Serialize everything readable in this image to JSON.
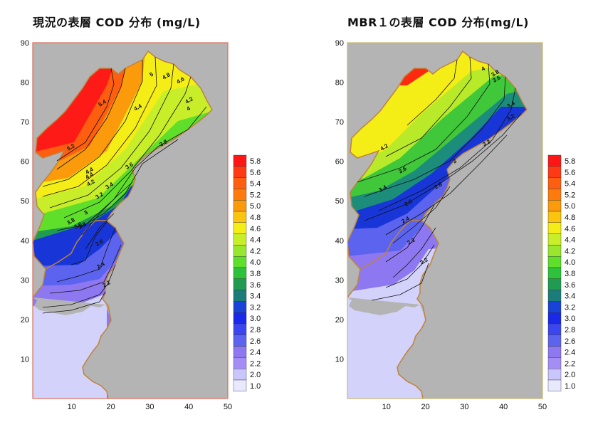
{
  "panels": [
    {
      "title": "現況の表層 COD 分布 (mg/L)",
      "frame_color": "#d9705a",
      "contour_labels": [
        "5",
        "4.8",
        "4.6",
        "4.4",
        "4.4",
        "4.2",
        "4",
        "3.8",
        "3.6",
        "3.4",
        "3.2",
        "3",
        "2.8",
        "2.6",
        "2.4",
        "2.2",
        "5.4",
        "5.2",
        "4.4",
        "4.2",
        "3.8",
        "3.6"
      ],
      "bands": [
        {
          "color": "#fe1a16",
          "min": 5.8
        },
        {
          "color": "#fe5e10",
          "min": 5.2
        },
        {
          "color": "#fb9a0b",
          "min": 4.8
        },
        {
          "color": "#f4ee16",
          "min": 4.6
        },
        {
          "color": "#c8ee2a",
          "min": 4.2
        },
        {
          "color": "#5fde2a",
          "min": 3.8
        },
        {
          "color": "#1f9c52",
          "min": 3.5
        },
        {
          "color": "#1836d8",
          "min": 3.0
        },
        {
          "color": "#5b63ef",
          "min": 2.6
        },
        {
          "color": "#8e78f1",
          "min": 2.2
        },
        {
          "color": "#d3d2fb",
          "min": 1.0
        }
      ]
    },
    {
      "title": "MBR１の表層 COD 分布(mg/L)",
      "frame_color": "#c9b772",
      "contour_labels": [
        "4",
        "3.8",
        "3.6",
        "3.4",
        "3.2",
        "3.2",
        "3",
        "2.8",
        "2.6",
        "2.4",
        "2.2",
        "4.2",
        "3.6",
        "3.4",
        "2.2"
      ],
      "bands": [
        {
          "color": "#fe2a10",
          "min": 5.8
        },
        {
          "color": "#f4ee16",
          "min": 4.4
        },
        {
          "color": "#b8ea2a",
          "min": 4.0
        },
        {
          "color": "#40c83a",
          "min": 3.7
        },
        {
          "color": "#1b8d7a",
          "min": 3.5
        },
        {
          "color": "#1836d8",
          "min": 3.0
        },
        {
          "color": "#5b63ef",
          "min": 2.6
        },
        {
          "color": "#8e78f1",
          "min": 2.2
        },
        {
          "color": "#d3d2fb",
          "min": 1.0
        }
      ]
    }
  ],
  "axes": {
    "x_ticks": [
      "10",
      "20",
      "30",
      "40",
      "50"
    ],
    "y_ticks": [
      "90",
      "80",
      "70",
      "60",
      "50",
      "40",
      "30",
      "20",
      "10"
    ]
  },
  "legend": {
    "labels": [
      "5.8",
      "5.6",
      "5.4",
      "5.2",
      "5.0",
      "4.8",
      "4.6",
      "4.4",
      "4.2",
      "4.0",
      "3.8",
      "3.6",
      "3.4",
      "3.2",
      "3.0",
      "2.8",
      "2.6",
      "2.4",
      "2.2",
      "2.0",
      "1.0"
    ],
    "colors": [
      "#fe1616",
      "#fe3a14",
      "#fe5e10",
      "#fe7a0c",
      "#fb9a0b",
      "#fbc40f",
      "#f4ee16",
      "#c8ee2a",
      "#98e62e",
      "#5fde2a",
      "#2ec23c",
      "#1f9c52",
      "#1b7d7a",
      "#1843d6",
      "#1a28e8",
      "#3c46ef",
      "#5b63ef",
      "#8e78f1",
      "#a48ef5",
      "#c8c6fa",
      "#e8e8fe"
    ]
  },
  "colors": {
    "land": "#b4b4b4",
    "shore": "#c0833a",
    "contour": "#111111"
  }
}
